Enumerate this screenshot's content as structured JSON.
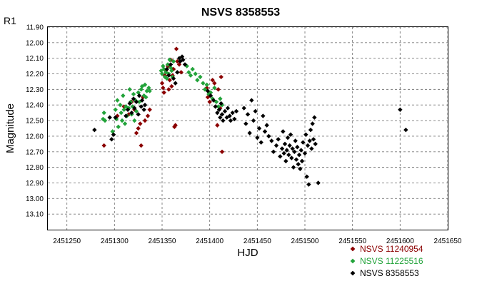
{
  "chart_data": {
    "type": "scatter",
    "title": "NSVS 8358553",
    "corner_label": "R1",
    "xlabel": "HJD",
    "ylabel": "Magnitude",
    "xlim": [
      2451230,
      2451650
    ],
    "ylim": [
      11.9,
      13.2
    ],
    "y_inverted": true,
    "grid": true,
    "legend_position": "bottom-right",
    "x_ticks": [
      2451250,
      2451300,
      2451350,
      2451400,
      2451450,
      2451500,
      2451550,
      2451600,
      2451650
    ],
    "x_tick_labels": [
      "2451250",
      "2451300",
      "2451350",
      "2451400",
      "2451450",
      "2451500",
      "2451550",
      "2451600",
      "2451650"
    ],
    "y_ticks": [
      11.9,
      12.0,
      12.1,
      12.2,
      12.3,
      12.4,
      12.5,
      12.6,
      12.7,
      12.8,
      12.9,
      13.0,
      13.1
    ],
    "y_tick_labels": [
      "11.90",
      "12.00",
      "12.10",
      "12.20",
      "12.30",
      "12.40",
      "12.50",
      "12.60",
      "12.70",
      "12.80",
      "12.90",
      "13.00",
      "13.10"
    ],
    "series": [
      {
        "name": "NSVS 11240954",
        "color": "#8b0000",
        "points": [
          [
            2451289,
            12.66
          ],
          [
            2451303,
            12.47
          ],
          [
            2451310,
            12.41
          ],
          [
            2451315,
            12.46
          ],
          [
            2451318,
            12.38
          ],
          [
            2451321,
            12.43
          ],
          [
            2451323,
            12.58
          ],
          [
            2451325,
            12.55
          ],
          [
            2451327,
            12.52
          ],
          [
            2451328,
            12.66
          ],
          [
            2451330,
            12.35
          ],
          [
            2451332,
            12.5
          ],
          [
            2451335,
            12.47
          ],
          [
            2451337,
            12.43
          ],
          [
            2451350,
            12.26
          ],
          [
            2451351,
            12.29
          ],
          [
            2451352,
            12.32
          ],
          [
            2451353,
            12.21
          ],
          [
            2451354,
            12.18
          ],
          [
            2451356,
            12.15
          ],
          [
            2451357,
            12.3
          ],
          [
            2451358,
            12.24
          ],
          [
            2451359,
            12.11
          ],
          [
            2451360,
            12.28
          ],
          [
            2451361,
            12.21
          ],
          [
            2451362,
            12.17
          ],
          [
            2451363,
            12.54
          ],
          [
            2451364,
            12.53
          ],
          [
            2451365,
            12.04
          ],
          [
            2451366,
            12.12
          ],
          [
            2451368,
            12.14
          ],
          [
            2451370,
            12.19
          ],
          [
            2451397,
            12.29
          ],
          [
            2451398,
            12.35
          ],
          [
            2451400,
            12.38
          ],
          [
            2451403,
            12.24
          ],
          [
            2451405,
            12.26
          ],
          [
            2451408,
            12.53
          ],
          [
            2451409,
            12.3
          ],
          [
            2451411,
            12.42
          ],
          [
            2451412,
            12.22
          ],
          [
            2451413,
            12.7
          ]
        ]
      },
      {
        "name": "NSVS 11225516",
        "color": "#22a33a",
        "points": [
          [
            2451288,
            12.49
          ],
          [
            2451289,
            12.45
          ],
          [
            2451290,
            12.5
          ],
          [
            2451298,
            12.57
          ],
          [
            2451301,
            12.43
          ],
          [
            2451302,
            12.49
          ],
          [
            2451303,
            12.37
          ],
          [
            2451304,
            12.54
          ],
          [
            2451306,
            12.4
          ],
          [
            2451307,
            12.45
          ],
          [
            2451308,
            12.5
          ],
          [
            2451309,
            12.34
          ],
          [
            2451310,
            12.43
          ],
          [
            2451311,
            12.52
          ],
          [
            2451312,
            12.41
          ],
          [
            2451313,
            12.47
          ],
          [
            2451315,
            12.42
          ],
          [
            2451316,
            12.3
          ],
          [
            2451317,
            12.38
          ],
          [
            2451318,
            12.46
          ],
          [
            2451319,
            12.41
          ],
          [
            2451320,
            12.33
          ],
          [
            2451321,
            12.5
          ],
          [
            2451322,
            12.37
          ],
          [
            2451323,
            12.44
          ],
          [
            2451325,
            12.32
          ],
          [
            2451326,
            12.38
          ],
          [
            2451328,
            12.3
          ],
          [
            2451329,
            12.28
          ],
          [
            2451331,
            12.34
          ],
          [
            2451332,
            12.27
          ],
          [
            2451333,
            12.35
          ],
          [
            2451334,
            12.31
          ],
          [
            2451336,
            12.29
          ],
          [
            2451337,
            12.31
          ],
          [
            2451349,
            12.18
          ],
          [
            2451350,
            12.2
          ],
          [
            2451351,
            12.15
          ],
          [
            2451352,
            12.17
          ],
          [
            2451353,
            12.22
          ],
          [
            2451354,
            12.19
          ],
          [
            2451355,
            12.23
          ],
          [
            2451356,
            12.14
          ],
          [
            2451357,
            12.2
          ],
          [
            2451358,
            12.11
          ],
          [
            2451359,
            12.16
          ],
          [
            2451360,
            12.18
          ],
          [
            2451361,
            12.22
          ],
          [
            2451362,
            12.12
          ],
          [
            2451376,
            12.15
          ],
          [
            2451378,
            12.19
          ],
          [
            2451380,
            12.21
          ],
          [
            2451382,
            12.17
          ],
          [
            2451385,
            12.2
          ],
          [
            2451387,
            12.24
          ],
          [
            2451390,
            12.22
          ],
          [
            2451393,
            12.26
          ],
          [
            2451395,
            12.3
          ],
          [
            2451397,
            12.27
          ],
          [
            2451399,
            12.33
          ],
          [
            2451401,
            12.32
          ],
          [
            2451403,
            12.36
          ],
          [
            2451405,
            12.29
          ],
          [
            2451407,
            12.38
          ],
          [
            2451409,
            12.41
          ],
          [
            2451411,
            12.36
          ],
          [
            2451413,
            12.4
          ]
        ]
      },
      {
        "name": "NSVS 8358553",
        "color": "#000000",
        "points": [
          [
            2451279,
            12.56
          ],
          [
            2451295,
            12.48
          ],
          [
            2451297,
            12.62
          ],
          [
            2451299,
            12.59
          ],
          [
            2451301,
            12.48
          ],
          [
            2451312,
            12.47
          ],
          [
            2451314,
            12.43
          ],
          [
            2451316,
            12.39
          ],
          [
            2451318,
            12.45
          ],
          [
            2451320,
            12.36
          ],
          [
            2451321,
            12.42
          ],
          [
            2451323,
            12.38
          ],
          [
            2451325,
            12.46
          ],
          [
            2451326,
            12.34
          ],
          [
            2451328,
            12.41
          ],
          [
            2451329,
            12.37
          ],
          [
            2451331,
            12.43
          ],
          [
            2451332,
            12.4
          ],
          [
            2451355,
            12.17
          ],
          [
            2451357,
            12.21
          ],
          [
            2451359,
            12.14
          ],
          [
            2451362,
            12.23
          ],
          [
            2451364,
            12.26
          ],
          [
            2451366,
            12.19
          ],
          [
            2451368,
            12.1
          ],
          [
            2451369,
            12.12
          ],
          [
            2451371,
            12.09
          ],
          [
            2451372,
            12.11
          ],
          [
            2451374,
            12.14
          ],
          [
            2451398,
            12.31
          ],
          [
            2451401,
            12.34
          ],
          [
            2451404,
            12.37
          ],
          [
            2451406,
            12.41
          ],
          [
            2451408,
            12.45
          ],
          [
            2451410,
            12.43
          ],
          [
            2451411,
            12.48
          ],
          [
            2451412,
            12.39
          ],
          [
            2451413,
            12.46
          ],
          [
            2451414,
            12.5
          ],
          [
            2451416,
            12.44
          ],
          [
            2451418,
            12.48
          ],
          [
            2451419,
            12.42
          ],
          [
            2451421,
            12.47
          ],
          [
            2451422,
            12.5
          ],
          [
            2451424,
            12.45
          ],
          [
            2451426,
            12.49
          ],
          [
            2451428,
            12.44
          ],
          [
            2451436,
            12.42
          ],
          [
            2451438,
            12.52
          ],
          [
            2451440,
            12.46
          ],
          [
            2451442,
            12.58
          ],
          [
            2451444,
            12.37
          ],
          [
            2451446,
            12.5
          ],
          [
            2451448,
            12.44
          ],
          [
            2451450,
            12.61
          ],
          [
            2451452,
            12.55
          ],
          [
            2451454,
            12.64
          ],
          [
            2451456,
            12.47
          ],
          [
            2451458,
            12.57
          ],
          [
            2451460,
            12.53
          ],
          [
            2451462,
            12.6
          ],
          [
            2451465,
            12.63
          ],
          [
            2451467,
            12.7
          ],
          [
            2451470,
            12.66
          ],
          [
            2451472,
            12.62
          ],
          [
            2451474,
            12.73
          ],
          [
            2451476,
            12.68
          ],
          [
            2451477,
            12.57
          ],
          [
            2451478,
            12.71
          ],
          [
            2451479,
            12.65
          ],
          [
            2451480,
            12.76
          ],
          [
            2451481,
            12.69
          ],
          [
            2451482,
            12.61
          ],
          [
            2451483,
            12.72
          ],
          [
            2451484,
            12.66
          ],
          [
            2451485,
            12.59
          ],
          [
            2451486,
            12.74
          ],
          [
            2451487,
            12.68
          ],
          [
            2451488,
            12.8
          ],
          [
            2451489,
            12.7
          ],
          [
            2451490,
            12.63
          ],
          [
            2451491,
            12.75
          ],
          [
            2451492,
            12.67
          ],
          [
            2451493,
            12.78
          ],
          [
            2451494,
            12.72
          ],
          [
            2451495,
            12.81
          ],
          [
            2451496,
            12.69
          ],
          [
            2451497,
            12.76
          ],
          [
            2451498,
            12.64
          ],
          [
            2451500,
            12.71
          ],
          [
            2451501,
            12.59
          ],
          [
            2451502,
            12.86
          ],
          [
            2451503,
            12.66
          ],
          [
            2451504,
            12.91
          ],
          [
            2451505,
            12.63
          ],
          [
            2451506,
            12.56
          ],
          [
            2451507,
            12.68
          ],
          [
            2451508,
            12.52
          ],
          [
            2451509,
            12.62
          ],
          [
            2451510,
            12.48
          ],
          [
            2451511,
            12.65
          ],
          [
            2451514,
            12.9
          ],
          [
            2451600,
            12.43
          ],
          [
            2451606,
            12.56
          ]
        ]
      }
    ]
  }
}
